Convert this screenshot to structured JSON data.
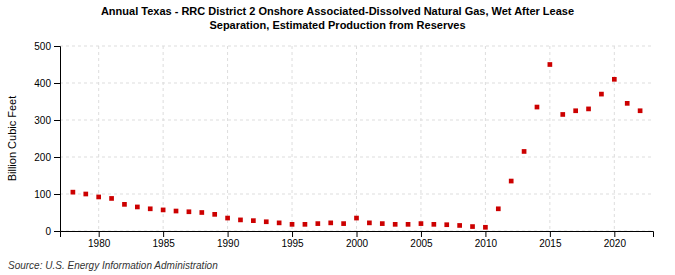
{
  "chart_data": {
    "type": "scatter",
    "title": "Annual Texas - RRC District 2 Onshore Associated-Dissolved Natural Gas, Wet After Lease\nSeparation, Estimated Production from Reserves",
    "ylabel": "Billion Cubic Feet",
    "annotations": [
      "Source: U.S. Energy Information Administration"
    ],
    "x": [
      1978,
      1979,
      1980,
      1981,
      1982,
      1983,
      1984,
      1985,
      1986,
      1987,
      1988,
      1989,
      1990,
      1991,
      1992,
      1993,
      1994,
      1995,
      1996,
      1997,
      1998,
      1999,
      2000,
      2001,
      2002,
      2003,
      2004,
      2005,
      2006,
      2007,
      2008,
      2009,
      2010,
      2011,
      2012,
      2013,
      2014,
      2015,
      2016,
      2017,
      2018,
      2019,
      2020,
      2021,
      2022
    ],
    "values": [
      105,
      100,
      92,
      88,
      72,
      65,
      60,
      57,
      54,
      52,
      50,
      45,
      35,
      30,
      28,
      25,
      22,
      18,
      18,
      20,
      22,
      20,
      35,
      22,
      20,
      18,
      18,
      20,
      18,
      17,
      15,
      12,
      10,
      60,
      135,
      215,
      335,
      450,
      315,
      325,
      330,
      370,
      410,
      345,
      325
    ],
    "color": "#cc0000",
    "marker": "square",
    "xlim": [
      1977,
      2023
    ],
    "ylim": [
      0,
      500
    ],
    "xticks": [
      1980,
      1985,
      1990,
      1995,
      2000,
      2005,
      2010,
      2015,
      2020
    ],
    "yticks": [
      0,
      100,
      200,
      300,
      400,
      500
    ],
    "grid": true
  }
}
